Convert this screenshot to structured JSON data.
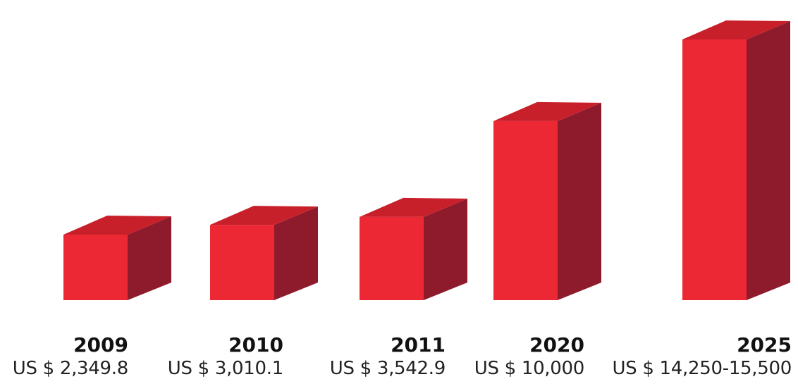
{
  "chart_data": {
    "type": "bar",
    "style": "3d-box",
    "categories": [
      "2009",
      "2010",
      "2011",
      "2020",
      "2025"
    ],
    "values": [
      2349.8,
      3010.1,
      3542.9,
      10000,
      15500
    ],
    "value_labels": [
      "US $ 2,349.8",
      "US $ 3,010.1",
      "US $ 3,542.9",
      "US $ 10,000",
      "US $ 14,250-15,500"
    ],
    "grid": false,
    "legend": "none"
  },
  "colors": {
    "front": "#ec2834",
    "top": "#c8202a",
    "side": "#8e1b2c"
  }
}
